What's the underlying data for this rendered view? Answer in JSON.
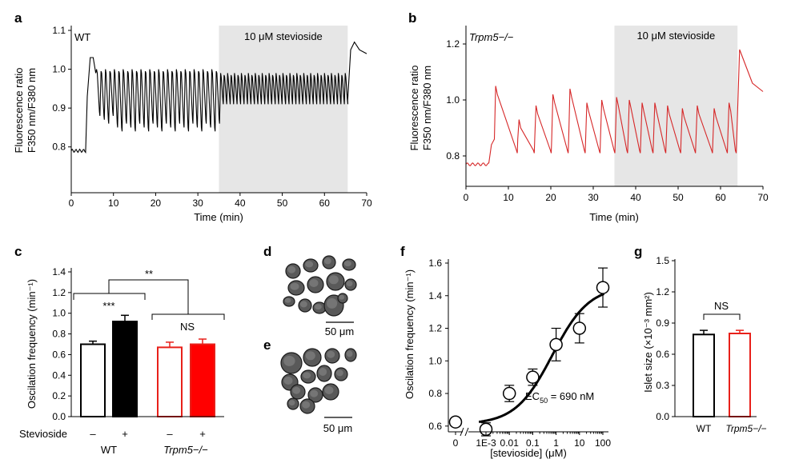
{
  "chart_data": [
    {
      "panel": "a",
      "type": "line",
      "label": "a",
      "genotype": "WT",
      "xlabel": "Time (min)",
      "ylabel": [
        "Fluorescence ratio",
        "F350 nm/F380 nm"
      ],
      "xlim": [
        0,
        70
      ],
      "ylim": [
        0.75,
        1.1
      ],
      "xticks": [
        0,
        10,
        20,
        30,
        40,
        50,
        60,
        70
      ],
      "yticks": [
        0.8,
        0.9,
        1.0,
        1.1
      ],
      "ytick_labels": [
        "0.8",
        "0.9",
        "1.0",
        "1.1"
      ],
      "shaded": {
        "from": 35,
        "to": 65.5,
        "label": "10 μM stevioside"
      },
      "color": "#000000",
      "trace": {
        "baseline": 0.79,
        "step_at": 3.5,
        "first_peak": 1.03,
        "osc_start": 6,
        "osc_end": 65.5,
        "period_before": 1.05,
        "period_during": 0.82,
        "peak_before": 1.0,
        "trough_before": 0.86,
        "peak_during": 0.99,
        "trough_during": 0.91,
        "final_peak": 1.07,
        "end": 70
      }
    },
    {
      "panel": "b",
      "type": "line",
      "label": "b",
      "genotype": "Trpm5−/−",
      "xlabel": "Time (min)",
      "ylabel": [
        "Fluorescence ratio",
        "F350 nm/F380 nm"
      ],
      "xlim": [
        0,
        70
      ],
      "ylim": [
        0.7,
        1.25
      ],
      "xticks": [
        0,
        10,
        20,
        30,
        40,
        50,
        60,
        70
      ],
      "yticks": [
        0.8,
        1.0,
        1.2
      ],
      "ytick_labels": [
        "0.8",
        "1.0",
        "1.2"
      ],
      "shaded": {
        "from": 35,
        "to": 64,
        "label": "10 μM stevioside"
      },
      "color": "#d62728",
      "trace": {
        "baseline": 0.77,
        "step_at": 5.5,
        "first_peak_at": 7,
        "first_peak": 1.05,
        "peaks": [
          [
            7,
            1.05
          ],
          [
            12.5,
            0.93
          ],
          [
            16.5,
            0.98
          ],
          [
            20.5,
            1.02
          ],
          [
            24.5,
            1.04
          ],
          [
            28.5,
            0.99
          ],
          [
            32,
            1.0
          ],
          [
            35.5,
            1.01
          ],
          [
            38.5,
            1.0
          ],
          [
            41.5,
            0.99
          ],
          [
            44.5,
            0.99
          ],
          [
            47.5,
            0.98
          ],
          [
            51,
            0.97
          ],
          [
            54.5,
            0.98
          ],
          [
            58.5,
            0.97
          ],
          [
            62,
            0.99
          ]
        ],
        "trough": 0.82,
        "final_peak_at": 64.5,
        "final_peak": 1.18,
        "end_value": 1.03
      }
    },
    {
      "panel": "c",
      "type": "bar",
      "label": "c",
      "ylabel": "Oscilation frequency (min⁻¹)",
      "ylim": [
        0,
        1.4
      ],
      "yticks": [
        0,
        0.2,
        0.4,
        0.6,
        0.8,
        1.0,
        1.2,
        1.4
      ],
      "ytick_labels": [
        "0.0",
        "0.2",
        "0.4",
        "0.6",
        "0.8",
        "1.0",
        "1.2",
        "1.4"
      ],
      "row_label": "Stevioside",
      "bars": [
        {
          "group": "WT",
          "stevioside": "–",
          "value": 0.7,
          "error": 0.03,
          "edge": "#000000",
          "fill": "#ffffff"
        },
        {
          "group": "WT",
          "stevioside": "+",
          "value": 0.92,
          "error": 0.06,
          "edge": "#000000",
          "fill": "#000000"
        },
        {
          "group": "Trpm5−/−",
          "stevioside": "–",
          "value": 0.67,
          "error": 0.05,
          "edge": "#e8201a",
          "fill": "#ffffff"
        },
        {
          "group": "Trpm5−/−",
          "stevioside": "+",
          "value": 0.7,
          "error": 0.05,
          "edge": "#e8201a",
          "fill": "#ff0000"
        }
      ],
      "groups": [
        "WT",
        "Trpm5−/−"
      ],
      "annotations": {
        "wt_pair": "***",
        "between_groups": "**",
        "ko_pair": "NS"
      }
    },
    {
      "panel": "f",
      "type": "scatter",
      "label": "f",
      "xlabel": "[stevioside] (μM)",
      "ylabel": "Oscilation frequency (min⁻¹)",
      "xscale": "log",
      "xlim": [
        0.0001,
        100
      ],
      "ylim": [
        0.55,
        1.6
      ],
      "yticks": [
        0.6,
        0.8,
        1.0,
        1.2,
        1.4,
        1.6
      ],
      "ytick_labels": [
        "0.6",
        "0.8",
        "1.0",
        "1.2",
        "1.4",
        "1.6"
      ],
      "xtick_labels": [
        "0",
        "1E-3",
        "0.01",
        "0.1",
        "1",
        "10",
        "100"
      ],
      "points": [
        {
          "x": 0,
          "y": 0.625,
          "error": 0.02
        },
        {
          "x": 0.001,
          "y": 0.58,
          "error": 0.04
        },
        {
          "x": 0.01,
          "y": 0.8,
          "error": 0.05
        },
        {
          "x": 0.1,
          "y": 0.9,
          "error": 0.05
        },
        {
          "x": 1,
          "y": 1.1,
          "error": 0.1
        },
        {
          "x": 10,
          "y": 1.2,
          "error": 0.09
        },
        {
          "x": 100,
          "y": 1.45,
          "error": 0.12
        }
      ],
      "fit": {
        "bottom": 0.61,
        "top": 1.46,
        "ec50": 0.69,
        "hill": 0.55
      },
      "annotation": "EC50 = 690 nM"
    },
    {
      "panel": "g",
      "type": "bar",
      "label": "g",
      "ylabel": "Islet size (×10⁻³ mm²)",
      "ylim": [
        0,
        1.5
      ],
      "yticks": [
        0,
        0.3,
        0.6,
        0.9,
        1.2,
        1.5
      ],
      "ytick_labels": [
        "0.0",
        "0.3",
        "0.6",
        "0.9",
        "1.2",
        "1.5"
      ],
      "categories": [
        "WT",
        "Trpm5−/−"
      ],
      "values": [
        0.79,
        0.8
      ],
      "errors": [
        0.04,
        0.03
      ],
      "edge_colors": [
        "#000000",
        "#e8201a"
      ],
      "annotation": "NS"
    }
  ],
  "images": {
    "d": {
      "label": "d",
      "scale": "50 μm"
    },
    "e": {
      "label": "e",
      "scale": "50 μm"
    }
  }
}
